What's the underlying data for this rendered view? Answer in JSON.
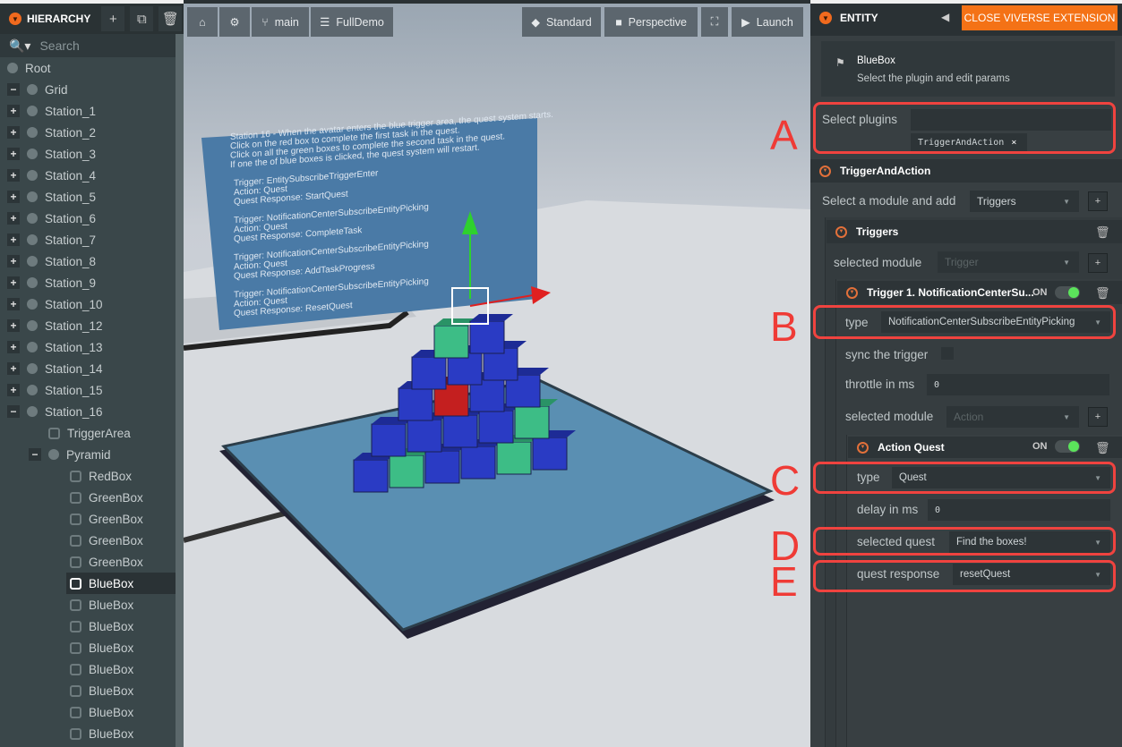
{
  "hierarchy": {
    "title": "HIERARCHY",
    "search_placeholder": "Search",
    "items": [
      {
        "label": "Root",
        "depth": 0,
        "exp": "",
        "icon": "node"
      },
      {
        "label": "Grid",
        "depth": 0,
        "exp": "−",
        "icon": "node"
      },
      {
        "label": "Station_1",
        "depth": 1,
        "exp": "+",
        "icon": "node"
      },
      {
        "label": "Station_2",
        "depth": 1,
        "exp": "+",
        "icon": "node"
      },
      {
        "label": "Station_3",
        "depth": 1,
        "exp": "+",
        "icon": "node"
      },
      {
        "label": "Station_4",
        "depth": 1,
        "exp": "+",
        "icon": "node"
      },
      {
        "label": "Station_5",
        "depth": 1,
        "exp": "+",
        "icon": "node"
      },
      {
        "label": "Station_6",
        "depth": 1,
        "exp": "+",
        "icon": "node"
      },
      {
        "label": "Station_7",
        "depth": 1,
        "exp": "+",
        "icon": "node"
      },
      {
        "label": "Station_8",
        "depth": 1,
        "exp": "+",
        "icon": "node"
      },
      {
        "label": "Station_9",
        "depth": 1,
        "exp": "+",
        "icon": "node"
      },
      {
        "label": "Station_10",
        "depth": 1,
        "exp": "+",
        "icon": "node"
      },
      {
        "label": "Station_12",
        "depth": 1,
        "exp": "+",
        "icon": "node"
      },
      {
        "label": "Station_13",
        "depth": 1,
        "exp": "+",
        "icon": "node"
      },
      {
        "label": "Station_14",
        "depth": 1,
        "exp": "+",
        "icon": "node"
      },
      {
        "label": "Station_15",
        "depth": 1,
        "exp": "+",
        "icon": "node"
      },
      {
        "label": "Station_16",
        "depth": 1,
        "exp": "−",
        "icon": "node"
      },
      {
        "label": "TriggerArea",
        "depth": 2,
        "exp": "",
        "icon": "entity"
      },
      {
        "label": "Pyramid",
        "depth": 2,
        "exp": "−",
        "icon": "node"
      },
      {
        "label": "RedBox",
        "depth": 3,
        "exp": "",
        "icon": "entity"
      },
      {
        "label": "GreenBox",
        "depth": 3,
        "exp": "",
        "icon": "entity"
      },
      {
        "label": "GreenBox",
        "depth": 3,
        "exp": "",
        "icon": "entity"
      },
      {
        "label": "GreenBox",
        "depth": 3,
        "exp": "",
        "icon": "entity"
      },
      {
        "label": "GreenBox",
        "depth": 3,
        "exp": "",
        "icon": "entity"
      },
      {
        "label": "BlueBox",
        "depth": 3,
        "exp": "",
        "icon": "entity",
        "selected": true
      },
      {
        "label": "BlueBox",
        "depth": 3,
        "exp": "",
        "icon": "entity"
      },
      {
        "label": "BlueBox",
        "depth": 3,
        "exp": "",
        "icon": "entity"
      },
      {
        "label": "BlueBox",
        "depth": 3,
        "exp": "",
        "icon": "entity"
      },
      {
        "label": "BlueBox",
        "depth": 3,
        "exp": "",
        "icon": "entity"
      },
      {
        "label": "BlueBox",
        "depth": 3,
        "exp": "",
        "icon": "entity"
      },
      {
        "label": "BlueBox",
        "depth": 3,
        "exp": "",
        "icon": "entity"
      },
      {
        "label": "BlueBox",
        "depth": 3,
        "exp": "",
        "icon": "entity"
      }
    ]
  },
  "toolbar": {
    "branch": "main",
    "scene": "FullDemo",
    "standard": "Standard",
    "perspective": "Perspective",
    "launch": "Launch"
  },
  "scene": {
    "sign_lines": [
      "Station 16 - When the avatar enters the blue trigger area, the quest system starts.",
      "Click on the red box to complete the first task in the quest.",
      "Click on all the green boxes to complete the second task in the quest.",
      "If one the of blue boxes is clicked, the quest system will restart.",
      "",
      "Trigger: EntitySubscribeTriggerEnter",
      "Action: Quest",
      "Quest Response: StartQuest",
      "",
      "Trigger: NotificationCenterSubscribeEntityPicking",
      "Action: Quest",
      "Quest Response: CompleteTask",
      "",
      "Trigger: NotificationCenterSubscribeEntityPicking",
      "Action: Quest",
      "Quest Response: AddTaskProgress",
      "",
      "Trigger: NotificationCenterSubscribeEntityPicking",
      "Action: Quest",
      "Quest Response: ResetQuest"
    ]
  },
  "entity": {
    "title": "ENTITY",
    "close_button": "CLOSE VIVERSE EXTENSION",
    "name": "BlueBox",
    "subtitle": "Select the plugin and edit params",
    "select_plugins_label": "Select plugins",
    "plugin_tag": "TriggerAndAction",
    "plugin_section": "TriggerAndAction",
    "module_label": "Select a module and add",
    "module_value": "Triggers",
    "triggers_section": "Triggers",
    "selected_module_label": "selected module",
    "selected_module_value": "Trigger",
    "trigger": {
      "title": "Trigger 1. NotificationCenterSu...",
      "on": "ON",
      "enabled": true,
      "type_label": "type",
      "type_value": "NotificationCenterSubscribeEntityPicking",
      "sync_label": "sync the trigger",
      "sync_checked": false,
      "throttle_label": "throttle in ms",
      "throttle_value": "0",
      "selected_module_label": "selected module",
      "selected_module_value": "Action"
    },
    "action": {
      "title": "Action Quest",
      "on": "ON",
      "enabled": true,
      "type_label": "type",
      "type_value": "Quest",
      "delay_label": "delay in ms",
      "delay_value": "0",
      "quest_label": "selected quest",
      "quest_value": "Find the boxes!",
      "response_label": "quest response",
      "response_value": "resetQuest"
    }
  },
  "annotations": {
    "letters": [
      "A",
      "B",
      "C",
      "D",
      "E"
    ],
    "color": "#ef3b36"
  },
  "colors": {
    "accent": "#f06a1e",
    "toggle_on": "#5be35b"
  }
}
